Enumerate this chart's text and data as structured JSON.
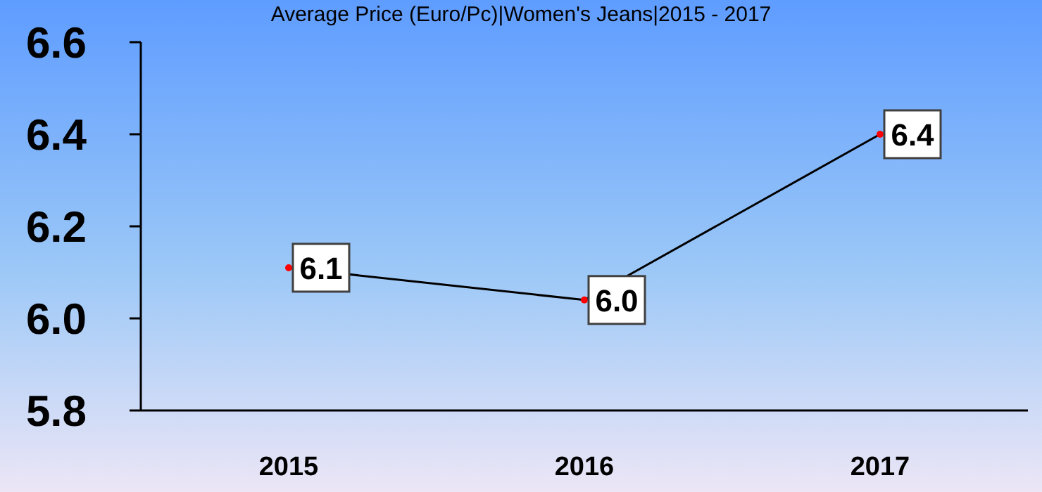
{
  "chart_data": {
    "type": "line",
    "title": "Average Price (Euro/Pc)|Women's Jeans|2015 - 2017",
    "categories": [
      "2015",
      "2016",
      "2017"
    ],
    "series": [
      {
        "color": "#000000",
        "values": [
          6.11,
          6.04,
          6.4
        ],
        "value_labels": [
          "6.1",
          "6.0",
          "6.4"
        ]
      }
    ],
    "ylim": [
      5.8,
      6.6
    ],
    "yticks": [
      {
        "value": 5.8,
        "label": "5.8"
      },
      {
        "value": 6.0,
        "label": "6.0"
      },
      {
        "value": 6.2,
        "label": "6.2"
      },
      {
        "value": 6.4,
        "label": "6.4"
      },
      {
        "value": 6.6,
        "label": "6.6"
      }
    ],
    "marker": "circle",
    "grid": false
  }
}
